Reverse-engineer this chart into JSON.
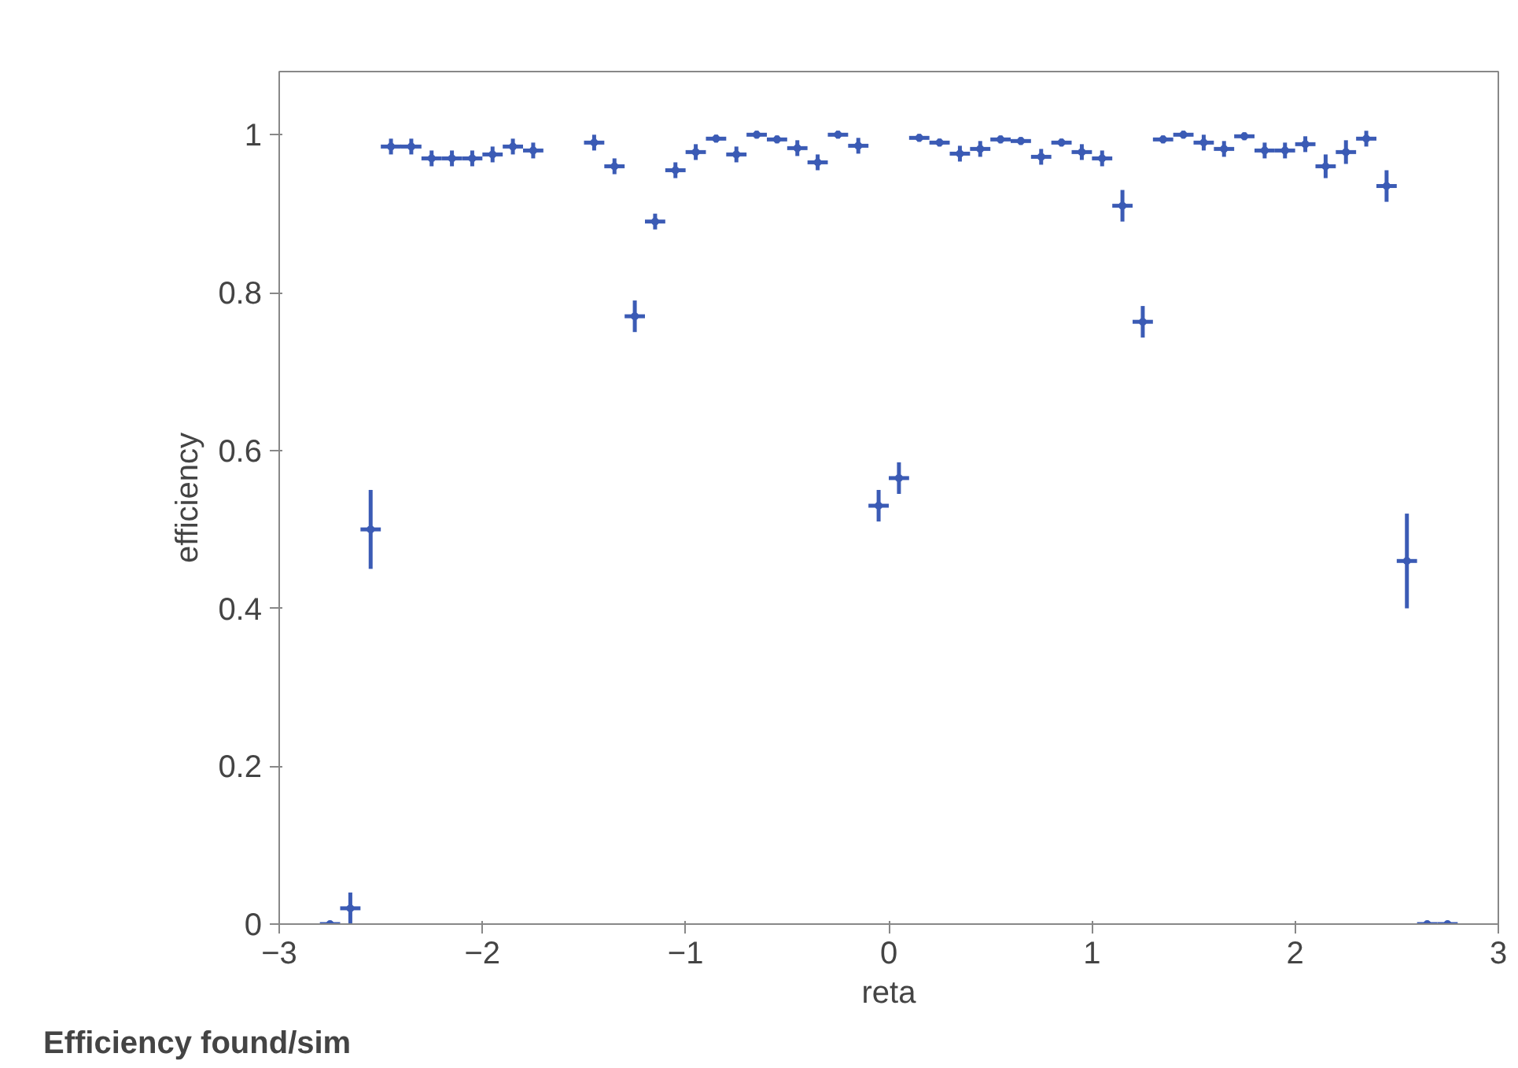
{
  "chart_data": {
    "type": "scatter",
    "xlabel": "reta",
    "ylabel": "efficiency",
    "annotations": [
      "Efficiency found/sim"
    ],
    "x": [
      -2.75,
      -2.65,
      -2.55,
      -2.45,
      -2.35,
      -2.25,
      -2.15,
      -2.05,
      -1.95,
      -1.85,
      -1.75,
      -1.65,
      -1.55,
      -1.45,
      -1.35,
      -1.25,
      -1.15,
      -1.05,
      -0.95,
      -0.85,
      -0.75,
      -0.65,
      -0.55,
      -0.45,
      -0.35,
      -0.25,
      -0.15,
      -0.05,
      0.05,
      0.15,
      0.25,
      0.35,
      0.45,
      0.55,
      0.65,
      0.75,
      0.85,
      0.95,
      1.05,
      1.15,
      1.25,
      1.35,
      1.45,
      1.55,
      1.65,
      1.75,
      1.85,
      1.95,
      2.05,
      2.15,
      2.25,
      2.35,
      2.45,
      2.55,
      2.65,
      2.75
    ],
    "series": [
      {
        "color": "#3b5bb5",
        "values": [
          0.0,
          0.02,
          0.5,
          0.985,
          0.985,
          0.97,
          0.97,
          0.97,
          0.975,
          0.985,
          0.98,
          null,
          null,
          0.99,
          0.96,
          0.77,
          0.89,
          0.955,
          0.978,
          0.995,
          0.975,
          1.0,
          0.994,
          0.983,
          0.965,
          1.0,
          0.986,
          0.53,
          0.565,
          0.996,
          0.99,
          0.976,
          0.982,
          0.994,
          0.992,
          0.972,
          0.99,
          0.978,
          0.97,
          0.91,
          0.763,
          0.994,
          1.0,
          0.99,
          0.982,
          0.998,
          0.98,
          0.98,
          0.988,
          0.96,
          0.978,
          0.995,
          0.935,
          0.46,
          0.0,
          0.0
        ],
        "errors": [
          null,
          0.02,
          0.05,
          0.01,
          0.01,
          0.01,
          0.01,
          0.01,
          0.01,
          0.01,
          0.01,
          null,
          null,
          0.01,
          0.01,
          0.02,
          0.01,
          0.01,
          0.01,
          0.005,
          0.01,
          0.005,
          0.005,
          0.01,
          0.01,
          0.005,
          0.01,
          0.02,
          0.02,
          0.005,
          0.005,
          0.01,
          0.01,
          0.005,
          0.005,
          0.01,
          0.005,
          0.01,
          0.01,
          0.02,
          0.02,
          0.005,
          0.005,
          0.01,
          0.01,
          0.005,
          0.01,
          0.01,
          0.01,
          0.015,
          0.015,
          0.01,
          0.02,
          0.06,
          null,
          null
        ],
        "xerrors": [
          0.05,
          0.05,
          0.05,
          0.05,
          0.05,
          0.05,
          0.05,
          0.05,
          0.05,
          0.05,
          0.05,
          null,
          null,
          0.05,
          0.05,
          0.05,
          0.05,
          0.05,
          0.05,
          0.05,
          0.05,
          0.05,
          0.05,
          0.05,
          0.05,
          0.05,
          0.05,
          0.05,
          0.05,
          0.05,
          0.05,
          0.05,
          0.05,
          0.05,
          0.05,
          0.05,
          0.05,
          0.05,
          0.05,
          0.05,
          0.05,
          0.05,
          0.05,
          0.05,
          0.05,
          0.05,
          0.05,
          0.05,
          0.05,
          0.05,
          0.05,
          0.05,
          0.05,
          0.05,
          0.05,
          0.05
        ]
      }
    ],
    "grid": false,
    "xlim": [
      -3,
      3
    ],
    "ylim": [
      0,
      1.08
    ],
    "xticks": [
      -3,
      -2,
      -1,
      0,
      1,
      2,
      3
    ],
    "yticks": [
      {
        "value": 0,
        "label": "0"
      },
      {
        "value": 0.2,
        "label": "0.2"
      },
      {
        "value": 0.4,
        "label": "0.4"
      },
      {
        "value": 0.6,
        "label": "0.6"
      },
      {
        "value": 0.8,
        "label": "0.8"
      },
      {
        "value": 1,
        "label": "1"
      }
    ]
  }
}
